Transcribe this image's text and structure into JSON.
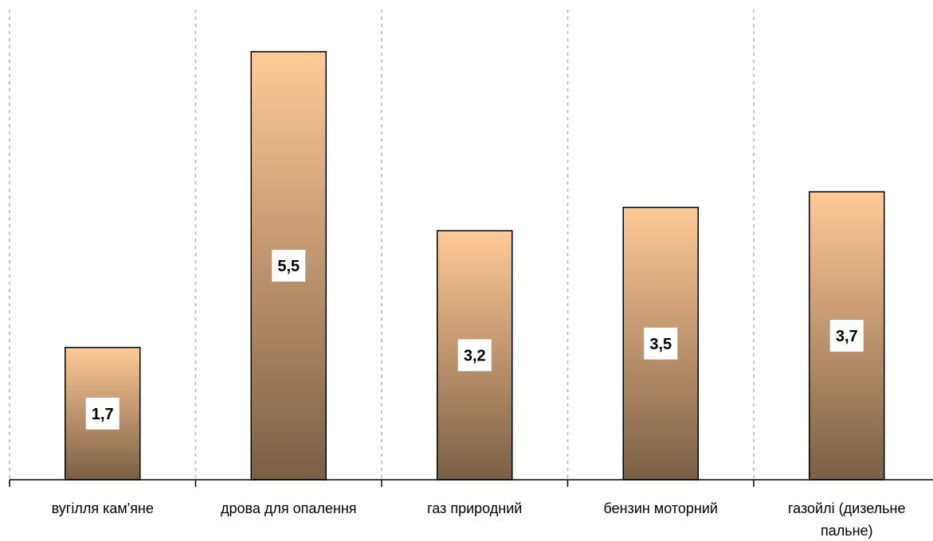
{
  "chart_data": {
    "type": "bar",
    "categories": [
      [
        "вугілля кам'яне"
      ],
      [
        "дрова для опалення"
      ],
      [
        "газ природний"
      ],
      [
        "бензин моторний"
      ],
      [
        "газойлі (дизельне",
        "пальне)"
      ]
    ],
    "values": [
      1.7,
      5.5,
      3.2,
      3.5,
      3.7
    ],
    "value_labels": [
      "1,7",
      "5,5",
      "3,2",
      "3,5",
      "3,7"
    ],
    "ylim": [
      0,
      6.2
    ],
    "grid": "vertical dashed between categories",
    "colors": {
      "bar_top": "#ffca96",
      "bar_bottom": "#7a5f46",
      "grid": "#b3b3b3",
      "axis": "#000000"
    }
  }
}
